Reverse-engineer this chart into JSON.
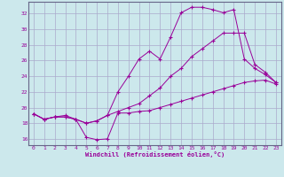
{
  "title": "Windchill (Refroidissement éolien,°C)",
  "background_color": "#cce8ec",
  "grid_color": "#aaaacc",
  "line_color": "#990099",
  "xlim": [
    -0.5,
    23.5
  ],
  "ylim": [
    15.2,
    33.5
  ],
  "xticks": [
    0,
    1,
    2,
    3,
    4,
    5,
    6,
    7,
    8,
    9,
    10,
    11,
    12,
    13,
    14,
    15,
    16,
    17,
    18,
    19,
    20,
    21,
    22,
    23
  ],
  "yticks": [
    16,
    18,
    20,
    22,
    24,
    26,
    28,
    30,
    32
  ],
  "curve1_x": [
    0,
    1,
    2,
    3,
    4,
    5,
    6,
    7,
    8,
    9,
    10,
    11,
    12,
    13,
    14,
    15,
    16,
    17,
    18,
    19,
    20,
    21,
    22,
    23
  ],
  "curve1_y": [
    19.2,
    18.5,
    18.8,
    18.8,
    18.5,
    16.2,
    15.9,
    16.0,
    19.3,
    19.3,
    19.5,
    19.6,
    20.0,
    20.4,
    20.8,
    21.2,
    21.6,
    22.0,
    22.4,
    22.8,
    23.2,
    23.4,
    23.5,
    23.0
  ],
  "curve2_x": [
    0,
    1,
    2,
    3,
    4,
    5,
    6,
    7,
    8,
    9,
    10,
    11,
    12,
    13,
    14,
    15,
    16,
    17,
    18,
    19,
    20,
    21,
    22,
    23
  ],
  "curve2_y": [
    19.2,
    18.5,
    18.8,
    18.8,
    18.5,
    18.0,
    18.3,
    19.0,
    19.5,
    20.0,
    20.5,
    21.5,
    22.5,
    24.0,
    25.0,
    26.5,
    27.5,
    28.5,
    29.5,
    29.5,
    29.5,
    25.5,
    24.5,
    23.2
  ],
  "curve3_x": [
    0,
    1,
    2,
    3,
    4,
    5,
    6,
    7,
    8,
    9,
    10,
    11,
    12,
    13,
    14,
    15,
    16,
    17,
    18,
    19,
    20,
    21,
    22,
    23
  ],
  "curve3_y": [
    19.2,
    18.5,
    18.8,
    19.0,
    18.5,
    18.0,
    18.3,
    19.0,
    22.0,
    24.0,
    26.2,
    27.2,
    26.2,
    29.0,
    32.1,
    32.8,
    32.8,
    32.5,
    32.1,
    32.5,
    26.2,
    25.0,
    24.2,
    23.2
  ]
}
